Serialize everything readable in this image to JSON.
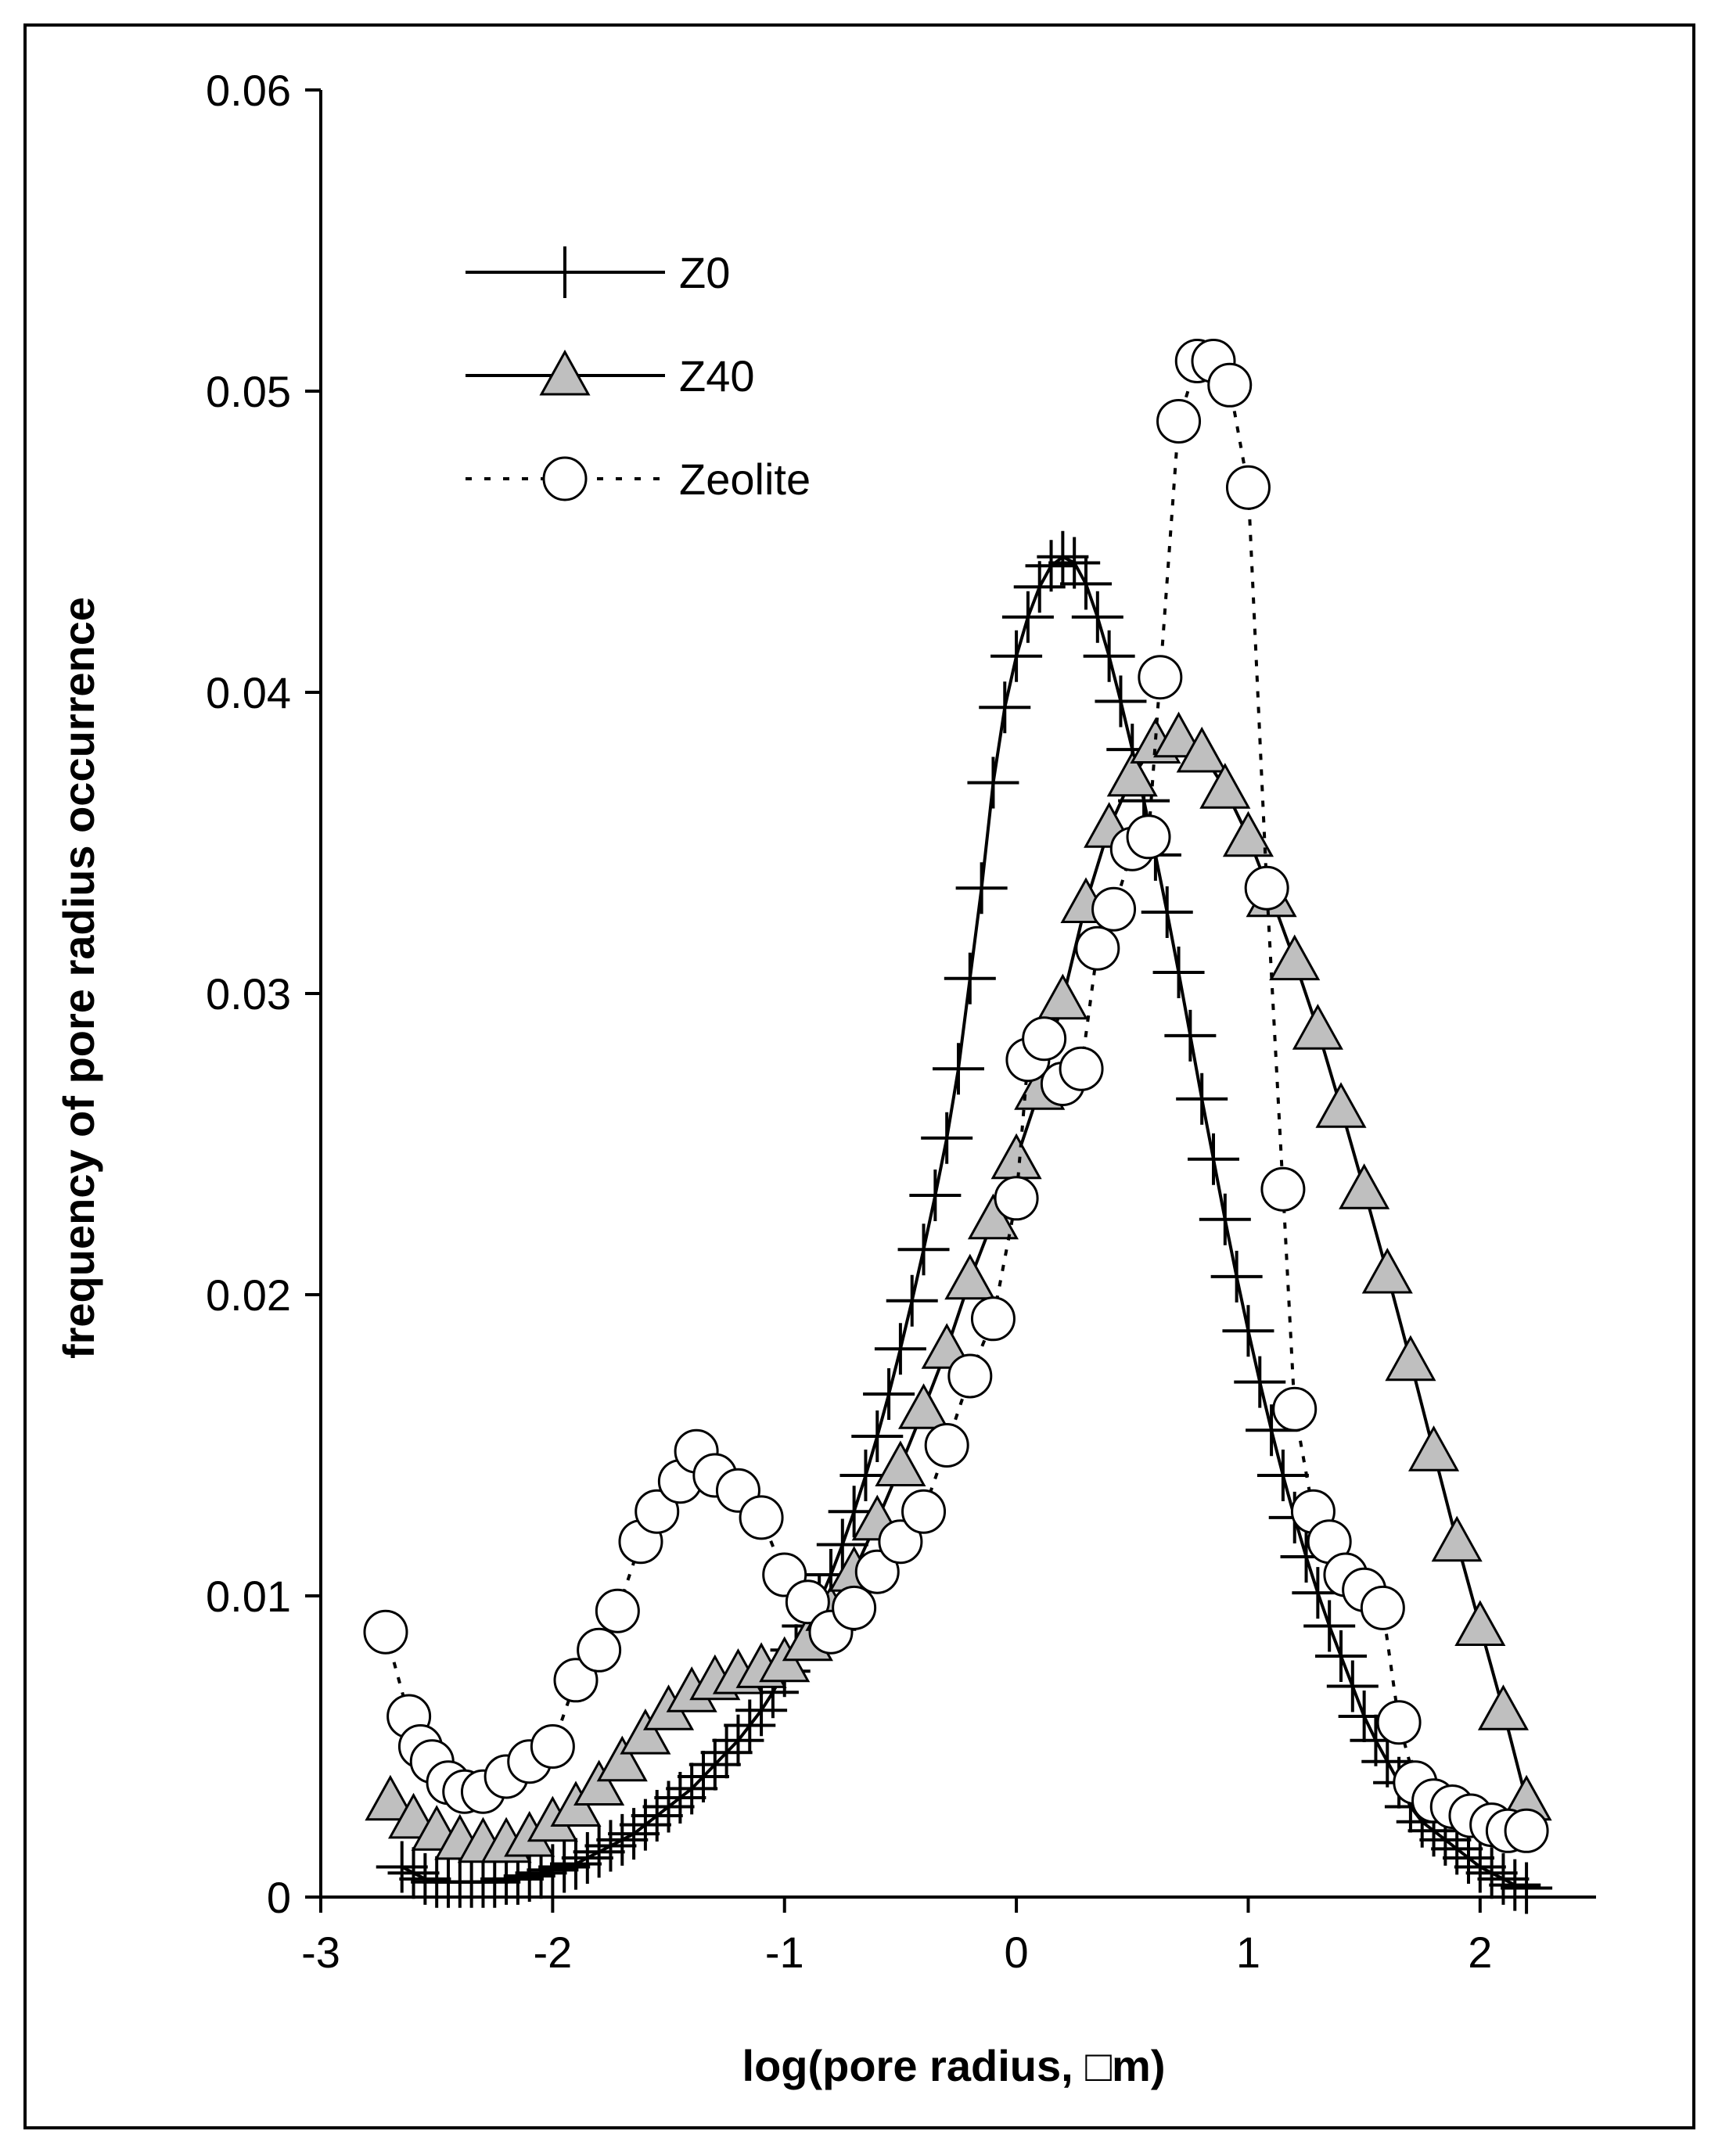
{
  "chart_data": {
    "type": "scatter",
    "title": "",
    "xlabel": "log(pore radius, □m)",
    "ylabel": "frequency of pore radius occurrence",
    "xlim": [
      -3,
      2.5
    ],
    "ylim": [
      0,
      0.06
    ],
    "x_ticks": [
      -3,
      -2,
      -1,
      0,
      1,
      2
    ],
    "x_tick_labels": [
      "-3",
      "-2",
      "-1",
      "0",
      "1",
      "2"
    ],
    "y_ticks": [
      0,
      0.01,
      0.02,
      0.03,
      0.04,
      0.05,
      0.06
    ],
    "y_tick_labels": [
      "0",
      "0.01",
      "0.02",
      "0.03",
      "0.04",
      "0.05",
      "0.06"
    ],
    "grid": false,
    "legend_position": "top-left",
    "series": [
      {
        "name": "Z0",
        "marker": "plus",
        "line": "solid",
        "x": [
          -2.65,
          -2.6,
          -2.55,
          -2.5,
          -2.45,
          -2.4,
          -2.35,
          -2.3,
          -2.25,
          -2.2,
          -2.15,
          -2.1,
          -2.05,
          -2.0,
          -1.95,
          -1.9,
          -1.85,
          -1.8,
          -1.75,
          -1.7,
          -1.65,
          -1.6,
          -1.55,
          -1.5,
          -1.45,
          -1.4,
          -1.35,
          -1.3,
          -1.25,
          -1.2,
          -1.15,
          -1.1,
          -1.05,
          -1.0,
          -0.95,
          -0.9,
          -0.85,
          -0.8,
          -0.75,
          -0.7,
          -0.65,
          -0.6,
          -0.55,
          -0.5,
          -0.45,
          -0.4,
          -0.35,
          -0.3,
          -0.25,
          -0.2,
          -0.15,
          -0.1,
          -0.05,
          0.0,
          0.05,
          0.1,
          0.15,
          0.2,
          0.25,
          0.3,
          0.35,
          0.4,
          0.45,
          0.5,
          0.55,
          0.6,
          0.65,
          0.7,
          0.75,
          0.8,
          0.85,
          0.9,
          0.95,
          1.0,
          1.05,
          1.1,
          1.15,
          1.2,
          1.25,
          1.3,
          1.35,
          1.4,
          1.45,
          1.5,
          1.55,
          1.6,
          1.65,
          1.7,
          1.75,
          1.8,
          1.85,
          1.9,
          1.95,
          2.0,
          2.05,
          2.1,
          2.15,
          2.2
        ],
        "y": [
          0.001,
          0.0008,
          0.0006,
          0.0005,
          0.0005,
          0.0005,
          0.0005,
          0.0005,
          0.0005,
          0.0006,
          0.0006,
          0.0007,
          0.0008,
          0.0009,
          0.001,
          0.0011,
          0.0013,
          0.0015,
          0.0017,
          0.0019,
          0.0021,
          0.0024,
          0.0027,
          0.003,
          0.0033,
          0.0036,
          0.004,
          0.0044,
          0.0048,
          0.0052,
          0.0057,
          0.0062,
          0.0068,
          0.0075,
          0.0082,
          0.009,
          0.0098,
          0.0107,
          0.0117,
          0.0128,
          0.014,
          0.0153,
          0.0167,
          0.0182,
          0.0198,
          0.0215,
          0.0233,
          0.0252,
          0.0275,
          0.0305,
          0.0335,
          0.037,
          0.0395,
          0.0412,
          0.0425,
          0.0435,
          0.0442,
          0.0445,
          0.0443,
          0.0436,
          0.0425,
          0.0412,
          0.0397,
          0.0381,
          0.0364,
          0.0346,
          0.0327,
          0.0307,
          0.0286,
          0.0265,
          0.0245,
          0.0225,
          0.0206,
          0.0188,
          0.0171,
          0.0155,
          0.014,
          0.0126,
          0.0113,
          0.0101,
          0.009,
          0.008,
          0.007,
          0.006,
          0.0052,
          0.0045,
          0.0038,
          0.003,
          0.0025,
          0.0022,
          0.0019,
          0.0016,
          0.0013,
          0.001,
          0.0008,
          0.0006,
          0.0004,
          0.0003
        ]
      },
      {
        "name": "Z40",
        "marker": "triangle",
        "line": "solid",
        "x": [
          -2.7,
          -2.6,
          -2.5,
          -2.4,
          -2.3,
          -2.2,
          -2.1,
          -2.0,
          -1.9,
          -1.8,
          -1.7,
          -1.6,
          -1.5,
          -1.4,
          -1.3,
          -1.2,
          -1.1,
          -1.0,
          -0.9,
          -0.8,
          -0.7,
          -0.6,
          -0.5,
          -0.4,
          -0.3,
          -0.2,
          -0.1,
          0.0,
          0.1,
          0.2,
          0.3,
          0.4,
          0.5,
          0.6,
          0.7,
          0.8,
          0.9,
          1.0,
          1.1,
          1.2,
          1.3,
          1.4,
          1.5,
          1.6,
          1.7,
          1.8,
          1.9,
          2.0,
          2.1,
          2.2
        ],
        "y": [
          0.0032,
          0.0026,
          0.0022,
          0.0019,
          0.0018,
          0.0018,
          0.002,
          0.0025,
          0.003,
          0.0037,
          0.0045,
          0.0054,
          0.0062,
          0.0068,
          0.0072,
          0.0074,
          0.0076,
          0.0078,
          0.0085,
          0.0095,
          0.0108,
          0.0125,
          0.0143,
          0.0162,
          0.0182,
          0.0205,
          0.0225,
          0.0245,
          0.0268,
          0.0298,
          0.033,
          0.0355,
          0.0372,
          0.0383,
          0.0385,
          0.038,
          0.0368,
          0.0352,
          0.0332,
          0.0311,
          0.0288,
          0.0262,
          0.0235,
          0.0207,
          0.0178,
          0.0148,
          0.0118,
          0.009,
          0.0062,
          0.0032
        ]
      },
      {
        "name": "Zeolite",
        "marker": "circle",
        "line": "dotted",
        "x": [
          -2.72,
          -2.62,
          -2.57,
          -2.52,
          -2.45,
          -2.38,
          -2.3,
          -2.2,
          -2.1,
          -2.0,
          -1.9,
          -1.8,
          -1.72,
          -1.62,
          -1.55,
          -1.45,
          -1.38,
          -1.3,
          -1.2,
          -1.1,
          -1.0,
          -0.9,
          -0.8,
          -0.7,
          -0.6,
          -0.5,
          -0.4,
          -0.3,
          -0.2,
          -0.1,
          0.0,
          0.05,
          0.12,
          0.2,
          0.28,
          0.35,
          0.42,
          0.5,
          0.57,
          0.62,
          0.7,
          0.78,
          0.85,
          0.92,
          1.0,
          1.08,
          1.15,
          1.2,
          1.28,
          1.35,
          1.42,
          1.5,
          1.58,
          1.65,
          1.72,
          1.8,
          1.88,
          1.96,
          2.05,
          2.12,
          2.2
        ],
        "y": [
          0.0088,
          0.006,
          0.005,
          0.0045,
          0.0038,
          0.0035,
          0.0035,
          0.004,
          0.0045,
          0.005,
          0.0072,
          0.0082,
          0.0095,
          0.0118,
          0.0128,
          0.0138,
          0.0148,
          0.014,
          0.0135,
          0.0126,
          0.0107,
          0.0098,
          0.0088,
          0.0096,
          0.0108,
          0.0118,
          0.0128,
          0.015,
          0.0173,
          0.0192,
          0.0232,
          0.0278,
          0.0285,
          0.027,
          0.0275,
          0.0315,
          0.0328,
          0.0348,
          0.0352,
          0.0405,
          0.049,
          0.051,
          0.051,
          0.0502,
          0.0468,
          0.0335,
          0.0235,
          0.0162,
          0.0128,
          0.0118,
          0.0107,
          0.0102,
          0.0096,
          0.0058,
          0.0038,
          0.0032,
          0.003,
          0.0027,
          0.0024,
          0.0022,
          0.0022
        ]
      }
    ],
    "colors": {
      "axis": "#000000",
      "triangle_fill": "#bfbfbf",
      "circle_fill": "#ffffff"
    }
  }
}
